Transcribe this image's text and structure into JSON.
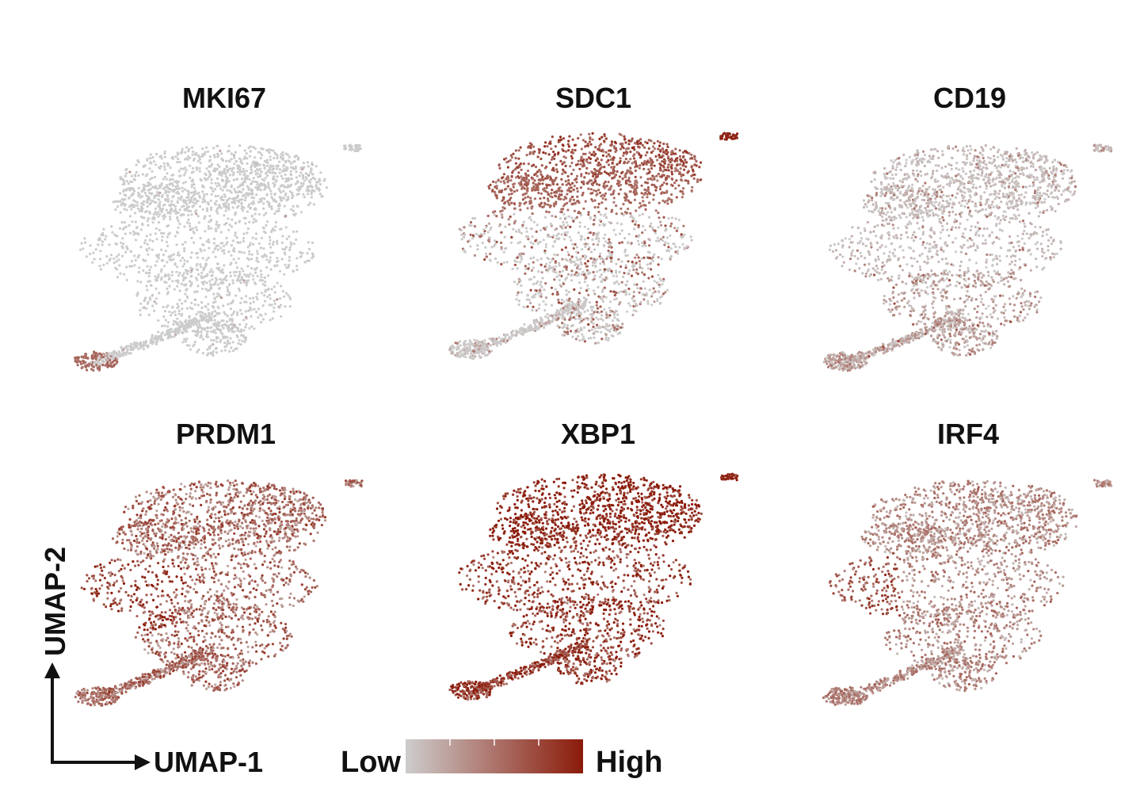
{
  "chart_data": {
    "type": "scatter",
    "panels": [
      {
        "title": "MKI67",
        "pattern": "mki67",
        "intensity": 0.04
      },
      {
        "title": "SDC1",
        "pattern": "top",
        "intensity": 0.55
      },
      {
        "title": "CD19",
        "pattern": "bottom",
        "intensity": 0.15
      },
      {
        "title": "PRDM1",
        "pattern": "mixed",
        "intensity": 0.45
      },
      {
        "title": "XBP1",
        "pattern": "high",
        "intensity": 0.72
      },
      {
        "title": "IRF4",
        "pattern": "left",
        "intensity": 0.35
      }
    ],
    "xlabel": "UMAP-1",
    "ylabel": "UMAP-2",
    "legend": {
      "low_label": "Low",
      "high_label": "High",
      "low_color": "#cdcdcd",
      "high_color": "#8b1a09",
      "placement": "bottom-center"
    }
  }
}
